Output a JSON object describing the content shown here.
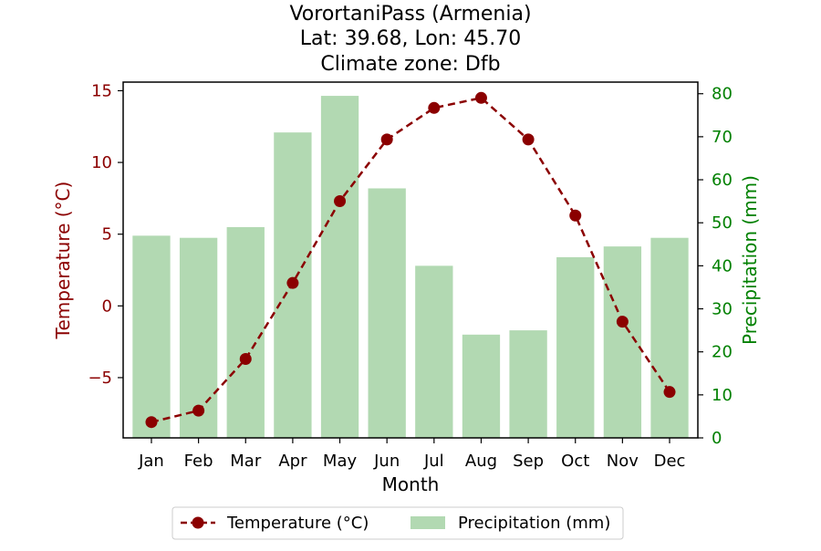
{
  "chart_data": {
    "type": "bar",
    "title_lines": [
      "VorortaniPass (Armenia)",
      "Lat: 39.68, Lon: 45.70",
      "Climate zone: Dfb"
    ],
    "xlabel": "Month",
    "ylabel_left": "Temperature (°C)",
    "ylabel_right": "Precipitation (mm)",
    "categories": [
      "Jan",
      "Feb",
      "Mar",
      "Apr",
      "May",
      "Jun",
      "Jul",
      "Aug",
      "Sep",
      "Oct",
      "Nov",
      "Dec"
    ],
    "series": [
      {
        "name": "Temperature (°C)",
        "type": "line",
        "axis": "left",
        "color": "#8b0000",
        "values": [
          -8.1,
          -7.3,
          -3.7,
          1.6,
          7.3,
          11.6,
          13.8,
          14.5,
          11.6,
          6.3,
          -1.1,
          -6.0
        ]
      },
      {
        "name": "Precipitation (mm)",
        "type": "bar",
        "axis": "right",
        "color": "#b2d9b2",
        "values": [
          47,
          46.5,
          49,
          71,
          79.5,
          58,
          40,
          24,
          25,
          42,
          44.5,
          46.5
        ]
      }
    ],
    "ylim_left": [
      -9.2,
      15.6
    ],
    "yticks_left": [
      15,
      10,
      5,
      0,
      -5
    ],
    "ytick_labels_left": [
      "15",
      "10",
      "5",
      "0",
      "−5"
    ],
    "ylim_right": [
      0,
      82.7
    ],
    "yticks_right": [
      80,
      70,
      60,
      50,
      40,
      30,
      20,
      10,
      0
    ],
    "ytick_labels_right": [
      "80",
      "70",
      "60",
      "50",
      "40",
      "30",
      "20",
      "10",
      "0"
    ],
    "left_axis_color": "#8b0000",
    "right_axis_color": "#008000",
    "grid": false,
    "legend_position": "bottom-center"
  }
}
